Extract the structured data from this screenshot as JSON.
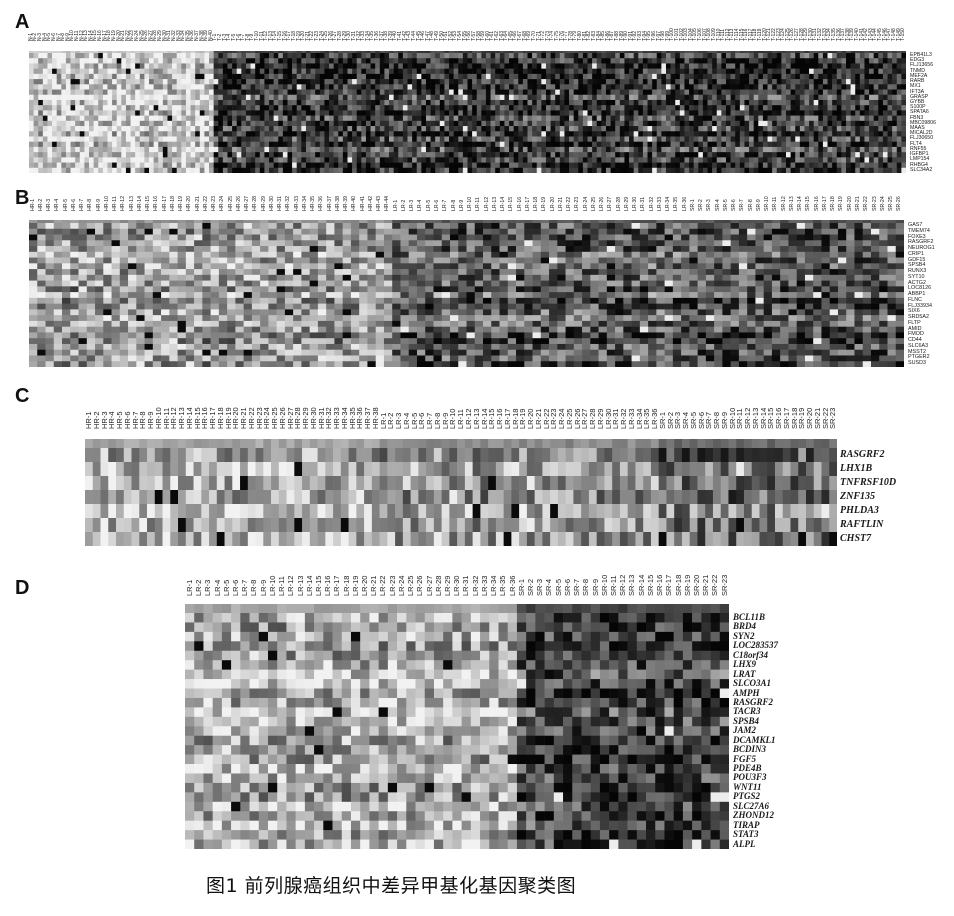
{
  "figure": {
    "caption": "图1 前列腺癌组织中差异甲基化基因聚类图",
    "palette": {
      "light": "#f2f2f2",
      "dark": "#050505",
      "label": "#1a1a1a"
    },
    "panels": [
      {
        "letter": "A",
        "rows": [
          "EPB41L3",
          "EDG3",
          "FLJ13656",
          "TNMD",
          "MEF2A",
          "RARB",
          "MX1",
          "IFT3A",
          "GRASP",
          "GYBB",
          "S100P",
          "SPATA6",
          "FBN3",
          "MBC09806",
          "MAAS",
          "MICAL2D",
          "FLJ30650",
          "FLT4",
          "RNF55",
          "IGFBP1",
          "LMP154",
          "RHBG4",
          "SLC34A2"
        ],
        "columns": [
          "N-1",
          "N-2",
          "N-3",
          "N-4",
          "N-5",
          "N-6",
          "N-7",
          "N-8",
          "N-9",
          "N-10",
          "N-11",
          "N-12",
          "N-13",
          "N-14",
          "N-15",
          "N-16",
          "N-17",
          "N-18",
          "N-19",
          "N-20",
          "N-21",
          "N-22",
          "N-23",
          "N-24",
          "N-25",
          "N-26",
          "N-27",
          "N-28",
          "N-29",
          "N-30",
          "N-31",
          "N-32",
          "N-33",
          "N-34",
          "N-35",
          "N-36",
          "N-37",
          "N-38",
          "N-39",
          "N-40",
          "T-1",
          "T-2",
          "T-3",
          "T-4",
          "T-5",
          "T-6",
          "T-7",
          "T-8",
          "T-9",
          "T-10",
          "T-11",
          "T-12",
          "T-13",
          "T-14",
          "T-15",
          "T-16",
          "T-17",
          "T-18",
          "T-19",
          "T-20",
          "T-21",
          "T-22",
          "T-23",
          "T-24",
          "T-25",
          "T-26",
          "T-27",
          "T-28",
          "T-29",
          "T-30",
          "T-31",
          "T-32",
          "T-33",
          "T-34",
          "T-35",
          "T-36",
          "T-37",
          "T-38",
          "T-39",
          "T-40",
          "T-41",
          "T-42",
          "T-43",
          "T-44",
          "T-45",
          "T-46",
          "T-47",
          "T-48",
          "T-49",
          "T-50",
          "T-51",
          "T-52",
          "T-53",
          "T-54",
          "T-55",
          "T-56",
          "T-57",
          "T-58",
          "T-59",
          "T-60",
          "T-61",
          "T-62",
          "T-63",
          "T-64",
          "T-65",
          "T-66",
          "T-67",
          "T-68",
          "T-69",
          "T-70",
          "T-71",
          "T-72",
          "T-73",
          "T-74",
          "T-75",
          "T-76",
          "T-77",
          "T-78",
          "T-79",
          "T-80",
          "T-81",
          "T-82",
          "T-83",
          "T-84",
          "T-85",
          "T-86",
          "T-87",
          "T-88",
          "T-89",
          "T-90",
          "T-91",
          "T-92",
          "T-93",
          "T-94",
          "T-95",
          "T-96",
          "T-97",
          "T-98",
          "T-99",
          "T-100",
          "T-101",
          "T-102",
          "T-103",
          "T-104",
          "T-105",
          "T-106",
          "T-107",
          "T-108",
          "T-109",
          "T-110",
          "T-111",
          "T-112",
          "T-113",
          "T-114",
          "T-115",
          "T-116",
          "T-117",
          "T-118",
          "T-119",
          "T-120",
          "T-121",
          "T-122",
          "T-123",
          "T-124",
          "T-125",
          "T-126",
          "T-127",
          "T-128",
          "T-129",
          "T-130",
          "T-131",
          "T-132",
          "T-133",
          "T-134",
          "T-135",
          "T-136",
          "T-137",
          "T-138",
          "T-139",
          "T-140",
          "T-141",
          "T-142",
          "T-143",
          "T-144",
          "T-145",
          "T-146",
          "T-147",
          "T-148",
          "T-149",
          "T-150"
        ],
        "groups": [
          {
            "from": 0,
            "to": 40,
            "level": 0.13
          },
          {
            "from": 40,
            "to": 190,
            "level": 0.74
          }
        ]
      },
      {
        "letter": "B",
        "rows": [
          "GAS7",
          "TMEM74",
          "FOXE3",
          "RASGRF2",
          "NEUROG1",
          "CRIP1",
          "GDF15",
          "SPSB4",
          "RUNX3",
          "SYT10",
          "ACTG2",
          "LOC8126",
          "ABBP1",
          "FLNC",
          "FLJ33934",
          "SIX6",
          "SRD5A2",
          "FLTP",
          "AMID",
          "FMOD",
          "CD44",
          "SLC6A3",
          "MSST2",
          "PTGER2",
          "SUSD3"
        ],
        "columns": [
          "HR-1",
          "HR-2",
          "HR-3",
          "HR-4",
          "HR-5",
          "HR-6",
          "HR-7",
          "HR-8",
          "HR-9",
          "HR-10",
          "HR-11",
          "HR-12",
          "HR-13",
          "HR-14",
          "HR-15",
          "HR-16",
          "HR-17",
          "HR-18",
          "HR-19",
          "HR-20",
          "HR-21",
          "HR-22",
          "HR-23",
          "HR-24",
          "HR-25",
          "HR-26",
          "HR-27",
          "HR-28",
          "HR-29",
          "HR-30",
          "HR-31",
          "HR-32",
          "HR-33",
          "HR-34",
          "HR-35",
          "HR-36",
          "HR-37",
          "HR-38",
          "HR-39",
          "HR-40",
          "HR-41",
          "HR-42",
          "HR-43",
          "HR-44",
          "LR-1",
          "LR-2",
          "LR-3",
          "LR-4",
          "LR-5",
          "LR-6",
          "LR-7",
          "LR-8",
          "LR-9",
          "LR-10",
          "LR-11",
          "LR-12",
          "LR-13",
          "LR-14",
          "LR-15",
          "LR-16",
          "LR-17",
          "LR-18",
          "LR-19",
          "LR-20",
          "LR-21",
          "LR-22",
          "LR-23",
          "LR-24",
          "LR-25",
          "LR-26",
          "LR-27",
          "LR-28",
          "LR-29",
          "LR-30",
          "LR-31",
          "LR-32",
          "LR-33",
          "LR-34",
          "LR-35",
          "LR-36",
          "SR-1",
          "SR-2",
          "SR-3",
          "SR-4",
          "SR-5",
          "SR-6",
          "SR-7",
          "SR-8",
          "SR-9",
          "SR-10",
          "SR-11",
          "SR-12",
          "SR-13",
          "SR-14",
          "SR-15",
          "SR-16",
          "SR-17",
          "SR-18",
          "SR-19",
          "SR-20",
          "SR-21",
          "SR-22",
          "SR-23",
          "SR-24",
          "SR-25",
          "SR-26"
        ],
        "groups": [
          {
            "from": 0,
            "to": 44,
            "level": 0.36
          },
          {
            "from": 44,
            "to": 80,
            "level": 0.62
          },
          {
            "from": 80,
            "to": 106,
            "level": 0.66
          }
        ]
      },
      {
        "letter": "C",
        "rows": [
          "RASGRF2",
          "LHX1B",
          "TNFRSF10D",
          "ZNF135",
          "PHLDA3",
          "RAFTLIN",
          "CHST7"
        ],
        "columns": [
          "HR-1",
          "HR-2",
          "HR-3",
          "HR-4",
          "HR-5",
          "HR-6",
          "HR-7",
          "HR-8",
          "HR-9",
          "HR-10",
          "HR-11",
          "HR-12",
          "HR-13",
          "HR-14",
          "HR-15",
          "HR-16",
          "HR-17",
          "HR-18",
          "HR-19",
          "HR-20",
          "HR-21",
          "HR-22",
          "HR-23",
          "HR-24",
          "HR-25",
          "HR-26",
          "HR-27",
          "HR-28",
          "HR-29",
          "HR-30",
          "HR-31",
          "HR-32",
          "HR-33",
          "HR-34",
          "HR-35",
          "HR-36",
          "HR-37",
          "HR-38",
          "LR-1",
          "LR-2",
          "LR-3",
          "LR-4",
          "LR-5",
          "LR-6",
          "LR-7",
          "LR-8",
          "LR-9",
          "LR-10",
          "LR-11",
          "LR-12",
          "LR-13",
          "LR-14",
          "LR-15",
          "LR-16",
          "LR-17",
          "LR-18",
          "LR-19",
          "LR-20",
          "LR-21",
          "LR-22",
          "LR-23",
          "LR-24",
          "LR-25",
          "LR-26",
          "LR-27",
          "LR-28",
          "LR-29",
          "LR-30",
          "LR-31",
          "LR-32",
          "LR-33",
          "LR-34",
          "LR-35",
          "LR-36",
          "SR-1",
          "SR-2",
          "SR-3",
          "SR-4",
          "SR-5",
          "SR-6",
          "SR-7",
          "SR-8",
          "SR-9",
          "SR-10",
          "SR-11",
          "SR-12",
          "SR-13",
          "SR-14",
          "SR-15",
          "SR-16",
          "SR-17",
          "SR-18",
          "SR-19",
          "SR-20",
          "SR-21",
          "SR-22",
          "SR-23"
        ],
        "groups": [
          {
            "from": 0,
            "to": 38,
            "level": 0.28
          },
          {
            "from": 38,
            "to": 74,
            "level": 0.4
          },
          {
            "from": 74,
            "to": 97,
            "level": 0.55
          }
        ]
      },
      {
        "letter": "D",
        "rows": [
          "BCL11B",
          "BRD4",
          "SYN2",
          "LOC283537",
          "C18orf34",
          "LHX9",
          "LRAT",
          "SLCO3A1",
          "AMPH",
          "RASGRF2",
          "TACR3",
          "SPSB4",
          "JAM2",
          "DCAMKL1",
          "BCDIN3",
          "FGF5",
          "PDE4B",
          "POU3F3",
          "WNT11",
          "PTGS2",
          "SLC27A6",
          "ZHOND12",
          "TIRAP",
          "STAT3",
          "ALPL"
        ],
        "columns": [
          "LR-1",
          "LR-2",
          "LR-3",
          "LR-4",
          "LR-5",
          "LR-6",
          "LR-7",
          "LR-8",
          "LR-9",
          "LR-10",
          "LR-11",
          "LR-12",
          "LR-13",
          "LR-14",
          "LR-15",
          "LR-16",
          "LR-17",
          "LR-18",
          "LR-19",
          "LR-20",
          "LR-21",
          "LR-22",
          "LR-23",
          "LR-24",
          "LR-25",
          "LR-26",
          "LR-27",
          "LR-28",
          "LR-29",
          "LR-30",
          "LR-31",
          "LR-32",
          "LR-33",
          "LR-34",
          "LR-35",
          "LR-36",
          "SR-1",
          "SR-2",
          "SR-3",
          "SR-4",
          "SR-5",
          "SR-6",
          "SR-7",
          "SR-8",
          "SR-9",
          "SR-10",
          "SR-11",
          "SR-12",
          "SR-13",
          "SR-14",
          "SR-15",
          "SR-16",
          "SR-17",
          "SR-18",
          "SR-19",
          "SR-20",
          "SR-21",
          "SR-22",
          "SR-23"
        ],
        "groups": [
          {
            "from": 0,
            "to": 36,
            "level": 0.28
          },
          {
            "from": 36,
            "to": 59,
            "level": 0.72
          }
        ]
      }
    ]
  }
}
